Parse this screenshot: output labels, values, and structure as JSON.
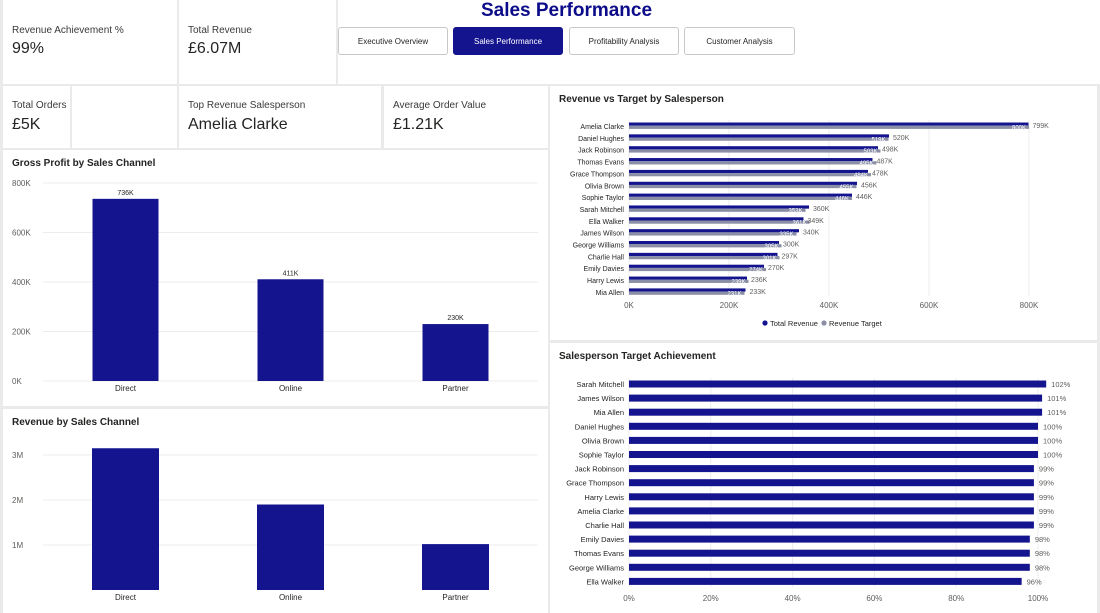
{
  "header": {
    "title": "Sales Performance"
  },
  "nav": [
    {
      "label": "Executive Overview",
      "active": false
    },
    {
      "label": "Sales Performance",
      "active": true
    },
    {
      "label": "Profitability Analysis",
      "active": false
    },
    {
      "label": "Customer Analysis",
      "active": false
    }
  ],
  "kpis": {
    "revenue_achievement": {
      "label": "Revenue Achievement %",
      "value": "99%"
    },
    "total_revenue": {
      "label": "Total Revenue",
      "value": "£6.07M"
    },
    "total_orders": {
      "label": "Total Orders",
      "value": "£5K"
    },
    "top_salesperson": {
      "label": "Top Revenue Salesperson",
      "value": "Amelia Clarke"
    },
    "avg_order_value": {
      "label": "Average Order Value",
      "value": "£1.21K"
    }
  },
  "colors": {
    "primary": "#14148f",
    "target": "#8a8fa6",
    "nav_active": "#14148f"
  },
  "chart_data": [
    {
      "id": "gross_profit",
      "type": "bar",
      "title": "Gross Profit by Sales Channel",
      "categories": [
        "Direct",
        "Online",
        "Partner"
      ],
      "values": [
        736,
        411,
        230
      ],
      "value_labels": [
        "736K",
        "411K",
        "230K"
      ],
      "yticks": [
        "0K",
        "200K",
        "400K",
        "600K",
        "800K"
      ],
      "ylim": [
        0,
        800
      ],
      "unit": "K"
    },
    {
      "id": "revenue_channel",
      "type": "bar",
      "title": "Revenue by Sales Channel",
      "categories": [
        "Direct",
        "Online",
        "Partner"
      ],
      "values": [
        3.15,
        1.9,
        1.02
      ],
      "yticks": [
        "1M",
        "2M",
        "3M"
      ],
      "ylim": [
        0,
        3.4
      ],
      "unit": "M"
    },
    {
      "id": "revenue_vs_target",
      "type": "bar",
      "title": "Revenue vs Target by Salesperson",
      "categories": [
        "Amelia Clarke",
        "Daniel Hughes",
        "Jack Robinson",
        "Thomas Evans",
        "Grace Thompson",
        "Olivia Brown",
        "Sophie Taylor",
        "Sarah Mitchell",
        "Ella Walker",
        "James Wilson",
        "George Williams",
        "Charlie Hall",
        "Emily Davies",
        "Harry Lewis",
        "Mia Allen"
      ],
      "series": [
        {
          "name": "Total Revenue",
          "values": [
            799,
            520,
            498,
            487,
            478,
            456,
            446,
            360,
            349,
            340,
            300,
            297,
            270,
            236,
            233
          ],
          "labels": [
            "799K",
            "520K",
            "498K",
            "487K",
            "478K",
            "456K",
            "446K",
            "360K",
            "349K",
            "340K",
            "300K",
            "297K",
            "270K",
            "236K",
            "233K"
          ]
        },
        {
          "name": "Revenue Target",
          "values": [
            800,
            519,
            503,
            495,
            484,
            455,
            446,
            353,
            361,
            335,
            305,
            301,
            274,
            239,
            231
          ],
          "labels": [
            "800K",
            "519K",
            "503K",
            "495K",
            "484K",
            "455K",
            "446K",
            "353K",
            "361K",
            "335K",
            "305K",
            "301K",
            "274K",
            "239K",
            "231K"
          ]
        }
      ],
      "xticks": [
        "0K",
        "200K",
        "400K",
        "600K",
        "800K"
      ],
      "xlim": [
        0,
        800
      ],
      "legend": "bottom"
    },
    {
      "id": "target_achievement",
      "type": "bar",
      "title": "Salesperson Target Achievement",
      "categories": [
        "Sarah Mitchell",
        "James Wilson",
        "Mia Allen",
        "Daniel Hughes",
        "Olivia Brown",
        "Sophie Taylor",
        "Jack Robinson",
        "Grace Thompson",
        "Harry Lewis",
        "Amelia Clarke",
        "Charlie Hall",
        "Emily Davies",
        "Thomas Evans",
        "George Williams",
        "Ella Walker"
      ],
      "values": [
        102,
        101,
        101,
        100,
        100,
        100,
        99,
        99,
        99,
        99,
        99,
        98,
        98,
        98,
        96
      ],
      "value_labels": [
        "102%",
        "101%",
        "101%",
        "100%",
        "100%",
        "100%",
        "99%",
        "99%",
        "99%",
        "99%",
        "99%",
        "98%",
        "98%",
        "98%",
        "96%"
      ],
      "xticks": [
        "0%",
        "20%",
        "40%",
        "60%",
        "80%",
        "100%"
      ],
      "xlim": [
        0,
        100
      ]
    }
  ]
}
